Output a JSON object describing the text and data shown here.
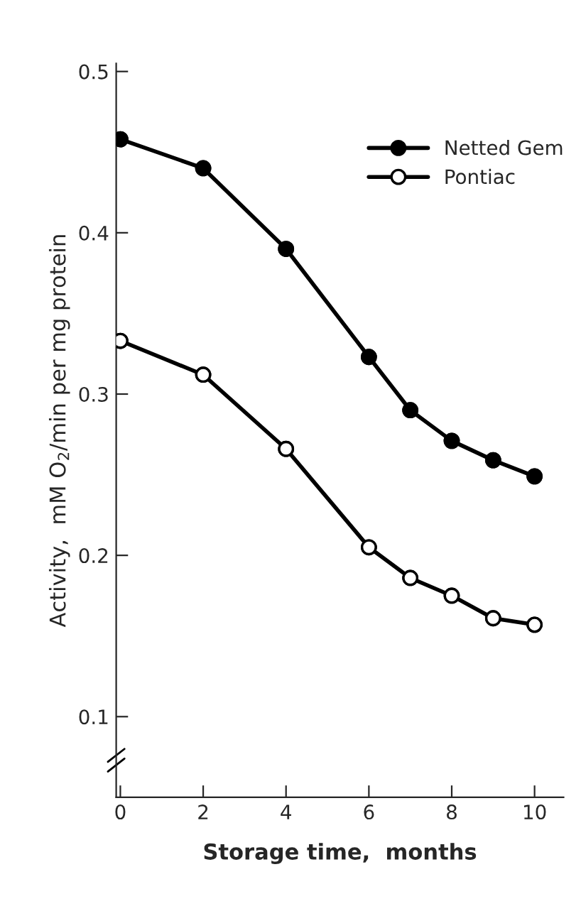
{
  "chart_data": {
    "type": "line",
    "xlabel": "Storage time,  months",
    "ylabel": "Activity,  mM O$_{2}$/min per mg protein",
    "xlim": [
      -0.1,
      10.7
    ],
    "xticks": [
      0,
      2,
      4,
      6,
      8,
      10
    ],
    "ylim": [
      0.05,
      0.505
    ],
    "yticks": [
      0.1,
      0.2,
      0.3,
      0.4,
      0.5
    ],
    "grid": false,
    "legend": "top right",
    "marker": "circle",
    "line_style": "solid",
    "series": [
      {
        "name": "Netted Gem",
        "color": "#000000",
        "colors": [
          "#000000",
          "#000000",
          "#000000",
          "#000000",
          "#000000",
          "#000000",
          "#000000",
          "#000000"
        ],
        "x": [
          0,
          2,
          4,
          6,
          7,
          8,
          9,
          10
        ],
        "values": [
          0.458,
          0.44,
          0.39,
          0.323,
          0.29,
          0.271,
          0.259,
          0.249
        ]
      },
      {
        "name": "Pontiac",
        "color": "#000000",
        "colors": [
          "#ffffff",
          "#ffffff",
          "#ffffff",
          "#ffffff",
          "#ffffff",
          "#ffffff",
          "#ffffff",
          "#ffffff"
        ],
        "x": [
          0,
          2,
          4,
          6,
          7,
          8,
          9,
          10
        ],
        "values": [
          0.333,
          0.312,
          0.266,
          0.205,
          0.186,
          0.175,
          0.161,
          0.157
        ]
      }
    ]
  }
}
